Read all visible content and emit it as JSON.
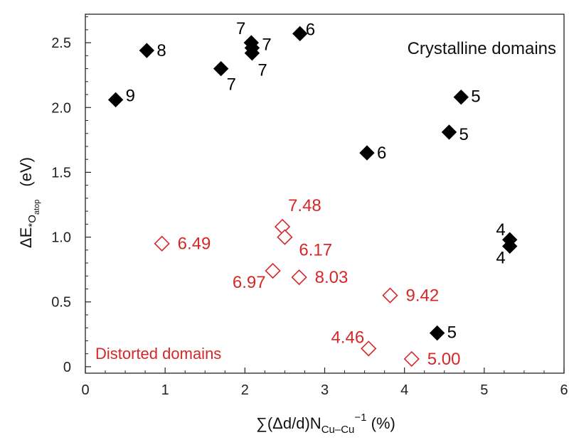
{
  "chart_data": {
    "type": "scatter",
    "xlabel": "∑(Δd/d)N",
    "xlabel_sub": "Cu–Cu",
    "xlabel_sup": "−1",
    "xlabel_unit": " (%)",
    "ylabel_prefix": "ΔE",
    "ylabel_sub1": "*O",
    "ylabel_sub2": "atop",
    "ylabel_unit": "(eV)",
    "xlim": [
      0,
      6
    ],
    "ylim": [
      -0.05,
      2.72
    ],
    "x_ticks": [
      0,
      1,
      2,
      3,
      4,
      5,
      6
    ],
    "x_tick_labels": [
      "0",
      "1",
      "2",
      "3",
      "4",
      "5",
      "6"
    ],
    "y_ticks": [
      0,
      0.5,
      1.0,
      1.5,
      2.0,
      2.5
    ],
    "y_tick_labels": [
      "0",
      "0.5",
      "1.0",
      "1.5",
      "2.0",
      "2.5"
    ],
    "grid": false,
    "colors": {
      "crystalline": "#000000",
      "distorted": "#d62728"
    },
    "annotations": {
      "crystalline": "Crystalline domains",
      "distorted": "Distorted domains"
    },
    "series": [
      {
        "marker": "filled-diamond",
        "points": [
          {
            "x": 0.38,
            "y": 2.06,
            "label": "9"
          },
          {
            "x": 0.77,
            "y": 2.44,
            "label": "8"
          },
          {
            "x": 1.7,
            "y": 2.3,
            "label": "7"
          },
          {
            "x": 2.08,
            "y": 2.5,
            "label": "7"
          },
          {
            "x": 2.09,
            "y": 2.46,
            "label": "7"
          },
          {
            "x": 2.09,
            "y": 2.42,
            "label": "7"
          },
          {
            "x": 2.69,
            "y": 2.57,
            "label": "6"
          },
          {
            "x": 3.53,
            "y": 1.65,
            "label": "6"
          },
          {
            "x": 4.56,
            "y": 1.81,
            "label": "5"
          },
          {
            "x": 4.71,
            "y": 2.08,
            "label": "5"
          },
          {
            "x": 4.41,
            "y": 0.26,
            "label": "5"
          },
          {
            "x": 5.32,
            "y": 0.98,
            "label": "4"
          },
          {
            "x": 5.32,
            "y": 0.93,
            "label": "4"
          }
        ]
      },
      {
        "marker": "open-diamond",
        "points": [
          {
            "x": 0.96,
            "y": 0.95,
            "label": "6.49"
          },
          {
            "x": 2.35,
            "y": 0.74,
            "label": "6.97"
          },
          {
            "x": 2.47,
            "y": 1.08,
            "label": "7.48"
          },
          {
            "x": 2.5,
            "y": 1.0,
            "label": "6.17"
          },
          {
            "x": 2.68,
            "y": 0.69,
            "label": "8.03"
          },
          {
            "x": 3.55,
            "y": 0.14,
            "label": "4.46"
          },
          {
            "x": 3.82,
            "y": 0.55,
            "label": "9.42"
          },
          {
            "x": 4.09,
            "y": 0.06,
            "label": "5.00"
          }
        ]
      }
    ]
  }
}
